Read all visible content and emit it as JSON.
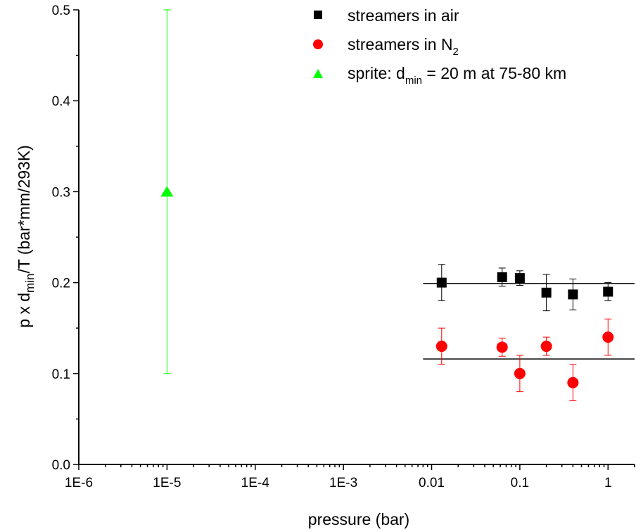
{
  "chart_data": {
    "type": "scatter",
    "x_scale": "log",
    "xlabel": "pressure (bar)",
    "ylabel": {
      "base": "p x d",
      "sub": "min",
      "rest": "/T (bar*mm/293K)"
    },
    "xlim": [
      1e-06,
      2
    ],
    "ylim": [
      0,
      0.5
    ],
    "x_ticks": [
      {
        "value": 1e-06,
        "label": "1E-6"
      },
      {
        "value": 1e-05,
        "label": "1E-5"
      },
      {
        "value": 0.0001,
        "label": "1E-4"
      },
      {
        "value": 0.001,
        "label": "1E-3"
      },
      {
        "value": 0.01,
        "label": "0.01"
      },
      {
        "value": 0.1,
        "label": "0.1"
      },
      {
        "value": 1,
        "label": "1"
      }
    ],
    "y_ticks": [
      {
        "value": 0.0,
        "label": "0.0"
      },
      {
        "value": 0.1,
        "label": "0.1"
      },
      {
        "value": 0.2,
        "label": "0.2"
      },
      {
        "value": 0.3,
        "label": "0.3"
      },
      {
        "value": 0.4,
        "label": "0.4"
      },
      {
        "value": 0.5,
        "label": "0.5"
      }
    ],
    "grid": false,
    "legend_position": "top-right",
    "series": [
      {
        "name": "streamers in air",
        "marker": "square",
        "color": "#000000",
        "points": [
          {
            "x": 0.013,
            "y": 0.2,
            "err_low": 0.18,
            "err_high": 0.22
          },
          {
            "x": 0.063,
            "y": 0.206,
            "err_low": 0.196,
            "err_high": 0.216
          },
          {
            "x": 0.1,
            "y": 0.205,
            "err_low": 0.197,
            "err_high": 0.213
          },
          {
            "x": 0.2,
            "y": 0.189,
            "err_low": 0.169,
            "err_high": 0.209
          },
          {
            "x": 0.4,
            "y": 0.187,
            "err_low": 0.17,
            "err_high": 0.204
          },
          {
            "x": 1.0,
            "y": 0.19,
            "err_low": 0.18,
            "err_high": 0.2
          }
        ]
      },
      {
        "name_parts": {
          "base": "streamers in N",
          "sub": "2"
        },
        "marker": "circle",
        "color": "#ff0000",
        "points": [
          {
            "x": 0.013,
            "y": 0.13,
            "err_low": 0.11,
            "err_high": 0.15
          },
          {
            "x": 0.063,
            "y": 0.129,
            "err_low": 0.119,
            "err_high": 0.139
          },
          {
            "x": 0.1,
            "y": 0.1,
            "err_low": 0.08,
            "err_high": 0.12
          },
          {
            "x": 0.2,
            "y": 0.13,
            "err_low": 0.12,
            "err_high": 0.14
          },
          {
            "x": 0.4,
            "y": 0.09,
            "err_low": 0.07,
            "err_high": 0.11
          },
          {
            "x": 1.0,
            "y": 0.14,
            "err_low": 0.12,
            "err_high": 0.16
          }
        ]
      },
      {
        "name_parts": {
          "base": "sprite: d",
          "sub": "min",
          "rest": " = 20 m at 75-80 km"
        },
        "marker": "triangle",
        "color": "#00ff00",
        "points": [
          {
            "x": 1e-05,
            "y": 0.3,
            "err_low": 0.1,
            "err_high": 0.5
          }
        ]
      }
    ],
    "reference_lines": [
      {
        "y": 0.199,
        "x_from": 0.008,
        "x_to": 2
      },
      {
        "y": 0.116,
        "x_from": 0.008,
        "x_to": 2
      }
    ]
  }
}
